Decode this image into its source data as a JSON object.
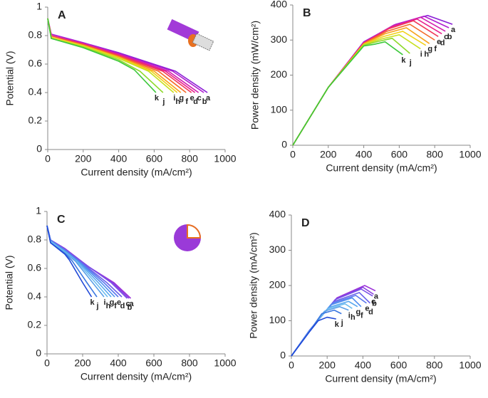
{
  "chart_data": [
    {
      "type": "line",
      "panel_label": "A",
      "x_label": "Current density (mA/cm²)",
      "y_label": "Potential (V)",
      "xlim": [
        0,
        1000
      ],
      "xticks": [
        0,
        200,
        400,
        600,
        800,
        1000
      ],
      "ylim": [
        0,
        1
      ],
      "yticks": [
        0,
        0.2,
        0.4,
        0.6,
        0.8,
        1
      ],
      "series": [
        {
          "name": "a",
          "color": "#8b1fd6",
          "x": [
            0,
            20,
            200,
            400,
            720,
            900
          ],
          "values": [
            0.92,
            0.81,
            0.75,
            0.68,
            0.55,
            0.4
          ]
        },
        {
          "name": "b",
          "color": "#b11fd0",
          "x": [
            0,
            20,
            200,
            400,
            704,
            880
          ],
          "values": [
            0.92,
            0.81,
            0.75,
            0.675,
            0.55,
            0.4
          ]
        },
        {
          "name": "c",
          "color": "#d21fb0",
          "x": [
            0,
            20,
            200,
            400,
            680,
            850
          ],
          "values": [
            0.92,
            0.8,
            0.745,
            0.67,
            0.55,
            0.4
          ]
        },
        {
          "name": "d",
          "color": "#e8208c",
          "x": [
            0,
            20,
            200,
            400,
            664,
            830
          ],
          "values": [
            0.92,
            0.8,
            0.74,
            0.665,
            0.55,
            0.4
          ]
        },
        {
          "name": "e",
          "color": "#f03a5a",
          "x": [
            0,
            20,
            200,
            400,
            648,
            810
          ],
          "values": [
            0.92,
            0.8,
            0.74,
            0.66,
            0.55,
            0.4
          ]
        },
        {
          "name": "f",
          "color": "#f56a2a",
          "x": [
            0,
            20,
            200,
            400,
            624,
            780
          ],
          "values": [
            0.92,
            0.79,
            0.735,
            0.655,
            0.55,
            0.4
          ]
        },
        {
          "name": "g",
          "color": "#f7a21c",
          "x": [
            0,
            20,
            200,
            400,
            600,
            750
          ],
          "values": [
            0.92,
            0.79,
            0.73,
            0.65,
            0.55,
            0.4
          ]
        },
        {
          "name": "h",
          "color": "#f2d21a",
          "x": [
            0,
            20,
            200,
            400,
            584,
            730
          ],
          "values": [
            0.92,
            0.79,
            0.73,
            0.645,
            0.55,
            0.4
          ]
        },
        {
          "name": "i",
          "color": "#c8e020",
          "x": [
            0,
            20,
            200,
            400,
            568,
            710
          ],
          "values": [
            0.92,
            0.78,
            0.725,
            0.64,
            0.55,
            0.4
          ]
        },
        {
          "name": "j",
          "color": "#8ed92a",
          "x": [
            0,
            20,
            200,
            400,
            520,
            650
          ],
          "values": [
            0.92,
            0.78,
            0.72,
            0.63,
            0.55,
            0.4
          ]
        },
        {
          "name": "k",
          "color": "#3cc83a",
          "x": [
            0,
            20,
            200,
            400,
            488,
            610
          ],
          "values": [
            0.92,
            0.78,
            0.715,
            0.62,
            0.56,
            0.4
          ]
        }
      ]
    },
    {
      "type": "line",
      "panel_label": "B",
      "x_label": "Current density (mA/cm²)",
      "y_label": "Power density (mW/cm²)",
      "xlim": [
        0,
        1000
      ],
      "xticks": [
        0,
        200,
        400,
        600,
        800,
        1000
      ],
      "ylim": [
        0,
        400
      ],
      "yticks": [
        0,
        100,
        200,
        300,
        400
      ],
      "series": [
        {
          "name": "a",
          "color": "#8b1fd6",
          "x": [
            0,
            200,
            400,
            580,
            760,
            900
          ],
          "values": [
            0,
            165,
            295,
            345,
            370,
            345
          ]
        },
        {
          "name": "b",
          "color": "#b11fd0",
          "x": [
            0,
            200,
            400,
            570,
            740,
            880
          ],
          "values": [
            0,
            165,
            294,
            343,
            368,
            335
          ]
        },
        {
          "name": "c",
          "color": "#d21fb0",
          "x": [
            0,
            200,
            400,
            560,
            720,
            860
          ],
          "values": [
            0,
            165,
            293,
            340,
            365,
            325
          ]
        },
        {
          "name": "d",
          "color": "#e8208c",
          "x": [
            0,
            200,
            400,
            550,
            700,
            840
          ],
          "values": [
            0,
            165,
            292,
            335,
            360,
            318
          ]
        },
        {
          "name": "e",
          "color": "#f03a5a",
          "x": [
            0,
            200,
            400,
            540,
            680,
            820
          ],
          "values": [
            0,
            165,
            291,
            332,
            355,
            310
          ]
        },
        {
          "name": "f",
          "color": "#f56a2a",
          "x": [
            0,
            200,
            400,
            530,
            660,
            800
          ],
          "values": [
            0,
            165,
            290,
            325,
            345,
            300
          ]
        },
        {
          "name": "g",
          "color": "#f7a21c",
          "x": [
            0,
            200,
            400,
            520,
            640,
            770
          ],
          "values": [
            0,
            165,
            289,
            318,
            335,
            290
          ]
        },
        {
          "name": "h",
          "color": "#f2d21a",
          "x": [
            0,
            200,
            400,
            510,
            620,
            750
          ],
          "values": [
            0,
            165,
            288,
            310,
            325,
            285
          ]
        },
        {
          "name": "i",
          "color": "#c8e020",
          "x": [
            0,
            200,
            400,
            500,
            600,
            720
          ],
          "values": [
            0,
            165,
            287,
            303,
            315,
            275
          ]
        },
        {
          "name": "j",
          "color": "#8ed92a",
          "x": [
            0,
            200,
            400,
            480,
            560,
            660
          ],
          "values": [
            0,
            165,
            285,
            296,
            305,
            262
          ]
        },
        {
          "name": "k",
          "color": "#3cc83a",
          "x": [
            0,
            200,
            400,
            460,
            520,
            620
          ],
          "values": [
            0,
            165,
            283,
            288,
            295,
            258
          ]
        }
      ]
    },
    {
      "type": "line",
      "panel_label": "C",
      "x_label": "Current density (mA/cm²)",
      "y_label": "Potential (V)",
      "xlim": [
        0,
        1000
      ],
      "xticks": [
        0,
        200,
        400,
        600,
        800,
        1000
      ],
      "ylim": [
        0,
        1
      ],
      "yticks": [
        0,
        0.2,
        0.4,
        0.6,
        0.8,
        1
      ],
      "series": [
        {
          "name": "a",
          "color": "#9b30d8",
          "x": [
            0,
            20,
            100,
            235,
            376,
            470
          ],
          "values": [
            0.9,
            0.8,
            0.74,
            0.61,
            0.5,
            0.39
          ]
        },
        {
          "name": "b",
          "color": "#8a3fe0",
          "x": [
            0,
            20,
            100,
            230,
            368,
            460
          ],
          "values": [
            0.9,
            0.8,
            0.74,
            0.615,
            0.5,
            0.39
          ]
        },
        {
          "name": "c",
          "color": "#7a50e6",
          "x": [
            0,
            20,
            100,
            225,
            360,
            450
          ],
          "values": [
            0.9,
            0.8,
            0.735,
            0.62,
            0.5,
            0.39
          ]
        },
        {
          "name": "d",
          "color": "#6a62ea",
          "x": [
            0,
            20,
            100,
            210,
            336,
            420
          ],
          "values": [
            0.9,
            0.8,
            0.73,
            0.625,
            0.5,
            0.4
          ]
        },
        {
          "name": "e",
          "color": "#5a78ee",
          "x": [
            0,
            20,
            100,
            200,
            320,
            400
          ],
          "values": [
            0.9,
            0.8,
            0.73,
            0.63,
            0.5,
            0.4
          ]
        },
        {
          "name": "f",
          "color": "#4f8eef",
          "x": [
            0,
            20,
            100,
            190,
            304,
            380
          ],
          "values": [
            0.9,
            0.79,
            0.725,
            0.635,
            0.5,
            0.4
          ]
        },
        {
          "name": "g",
          "color": "#58a8ee",
          "x": [
            0,
            20,
            100,
            180,
            288,
            360
          ],
          "values": [
            0.9,
            0.79,
            0.72,
            0.64,
            0.5,
            0.4
          ]
        },
        {
          "name": "h",
          "color": "#6cbcef",
          "x": [
            0,
            20,
            100,
            170,
            272,
            340
          ],
          "values": [
            0.9,
            0.79,
            0.715,
            0.645,
            0.5,
            0.4
          ]
        },
        {
          "name": "i",
          "color": "#5aa0e8",
          "x": [
            0,
            20,
            100,
            160,
            256,
            320
          ],
          "values": [
            0.9,
            0.78,
            0.71,
            0.65,
            0.5,
            0.4
          ]
        },
        {
          "name": "j",
          "color": "#3c78e0",
          "x": [
            0,
            20,
            100,
            140,
            224,
            280
          ],
          "values": [
            0.9,
            0.78,
            0.705,
            0.655,
            0.5,
            0.4
          ]
        },
        {
          "name": "k",
          "color": "#1f48d8",
          "x": [
            0,
            20,
            100,
            125,
            200,
            250
          ],
          "values": [
            0.9,
            0.78,
            0.7,
            0.66,
            0.5,
            0.4
          ]
        }
      ]
    },
    {
      "type": "line",
      "panel_label": "D",
      "x_label": "Current density (mA/cm²)",
      "y_label": "Power density (mA/cm²)",
      "xlim": [
        0,
        1000
      ],
      "xticks": [
        0,
        200,
        400,
        600,
        800,
        1000
      ],
      "ylim": [
        0,
        400
      ],
      "yticks": [
        0,
        100,
        200,
        300,
        400
      ],
      "series": [
        {
          "name": "a",
          "color": "#9b30d8",
          "x": [
            0,
            100,
            255,
            410,
            470
          ],
          "values": [
            0,
            72,
            165,
            200,
            185
          ]
        },
        {
          "name": "b",
          "color": "#8a3fe0",
          "x": [
            0,
            100,
            250,
            400,
            460
          ],
          "values": [
            0,
            72,
            162,
            195,
            175
          ]
        },
        {
          "name": "c",
          "color": "#7a50e6",
          "x": [
            0,
            100,
            245,
            390,
            455
          ],
          "values": [
            0,
            72,
            160,
            190,
            170
          ]
        },
        {
          "name": "d",
          "color": "#6a62ea",
          "x": [
            0,
            100,
            240,
            380,
            440
          ],
          "values": [
            0,
            72,
            155,
            180,
            150
          ]
        },
        {
          "name": "e",
          "color": "#5a78ee",
          "x": [
            0,
            100,
            230,
            360,
            420
          ],
          "values": [
            0,
            72,
            150,
            172,
            150
          ]
        },
        {
          "name": "f",
          "color": "#4f8eef",
          "x": [
            0,
            100,
            220,
            340,
            390
          ],
          "values": [
            0,
            71,
            145,
            165,
            140
          ]
        },
        {
          "name": "g",
          "color": "#58a8ee",
          "x": [
            0,
            100,
            210,
            320,
            370
          ],
          "values": [
            0,
            71,
            138,
            155,
            140
          ]
        },
        {
          "name": "h",
          "color": "#6cbcef",
          "x": [
            0,
            100,
            200,
            300,
            340
          ],
          "values": [
            0,
            70,
            133,
            148,
            135
          ]
        },
        {
          "name": "i",
          "color": "#5aa0e8",
          "x": [
            0,
            100,
            185,
            270,
            320
          ],
          "values": [
            0,
            70,
            127,
            140,
            130
          ]
        },
        {
          "name": "j",
          "color": "#3c78e0",
          "x": [
            0,
            100,
            170,
            240,
            280
          ],
          "values": [
            0,
            69,
            120,
            130,
            120
          ]
        },
        {
          "name": "k",
          "color": "#1f48d8",
          "x": [
            0,
            100,
            150,
            200,
            250
          ],
          "values": [
            0,
            68,
            100,
            110,
            105
          ]
        }
      ]
    }
  ]
}
